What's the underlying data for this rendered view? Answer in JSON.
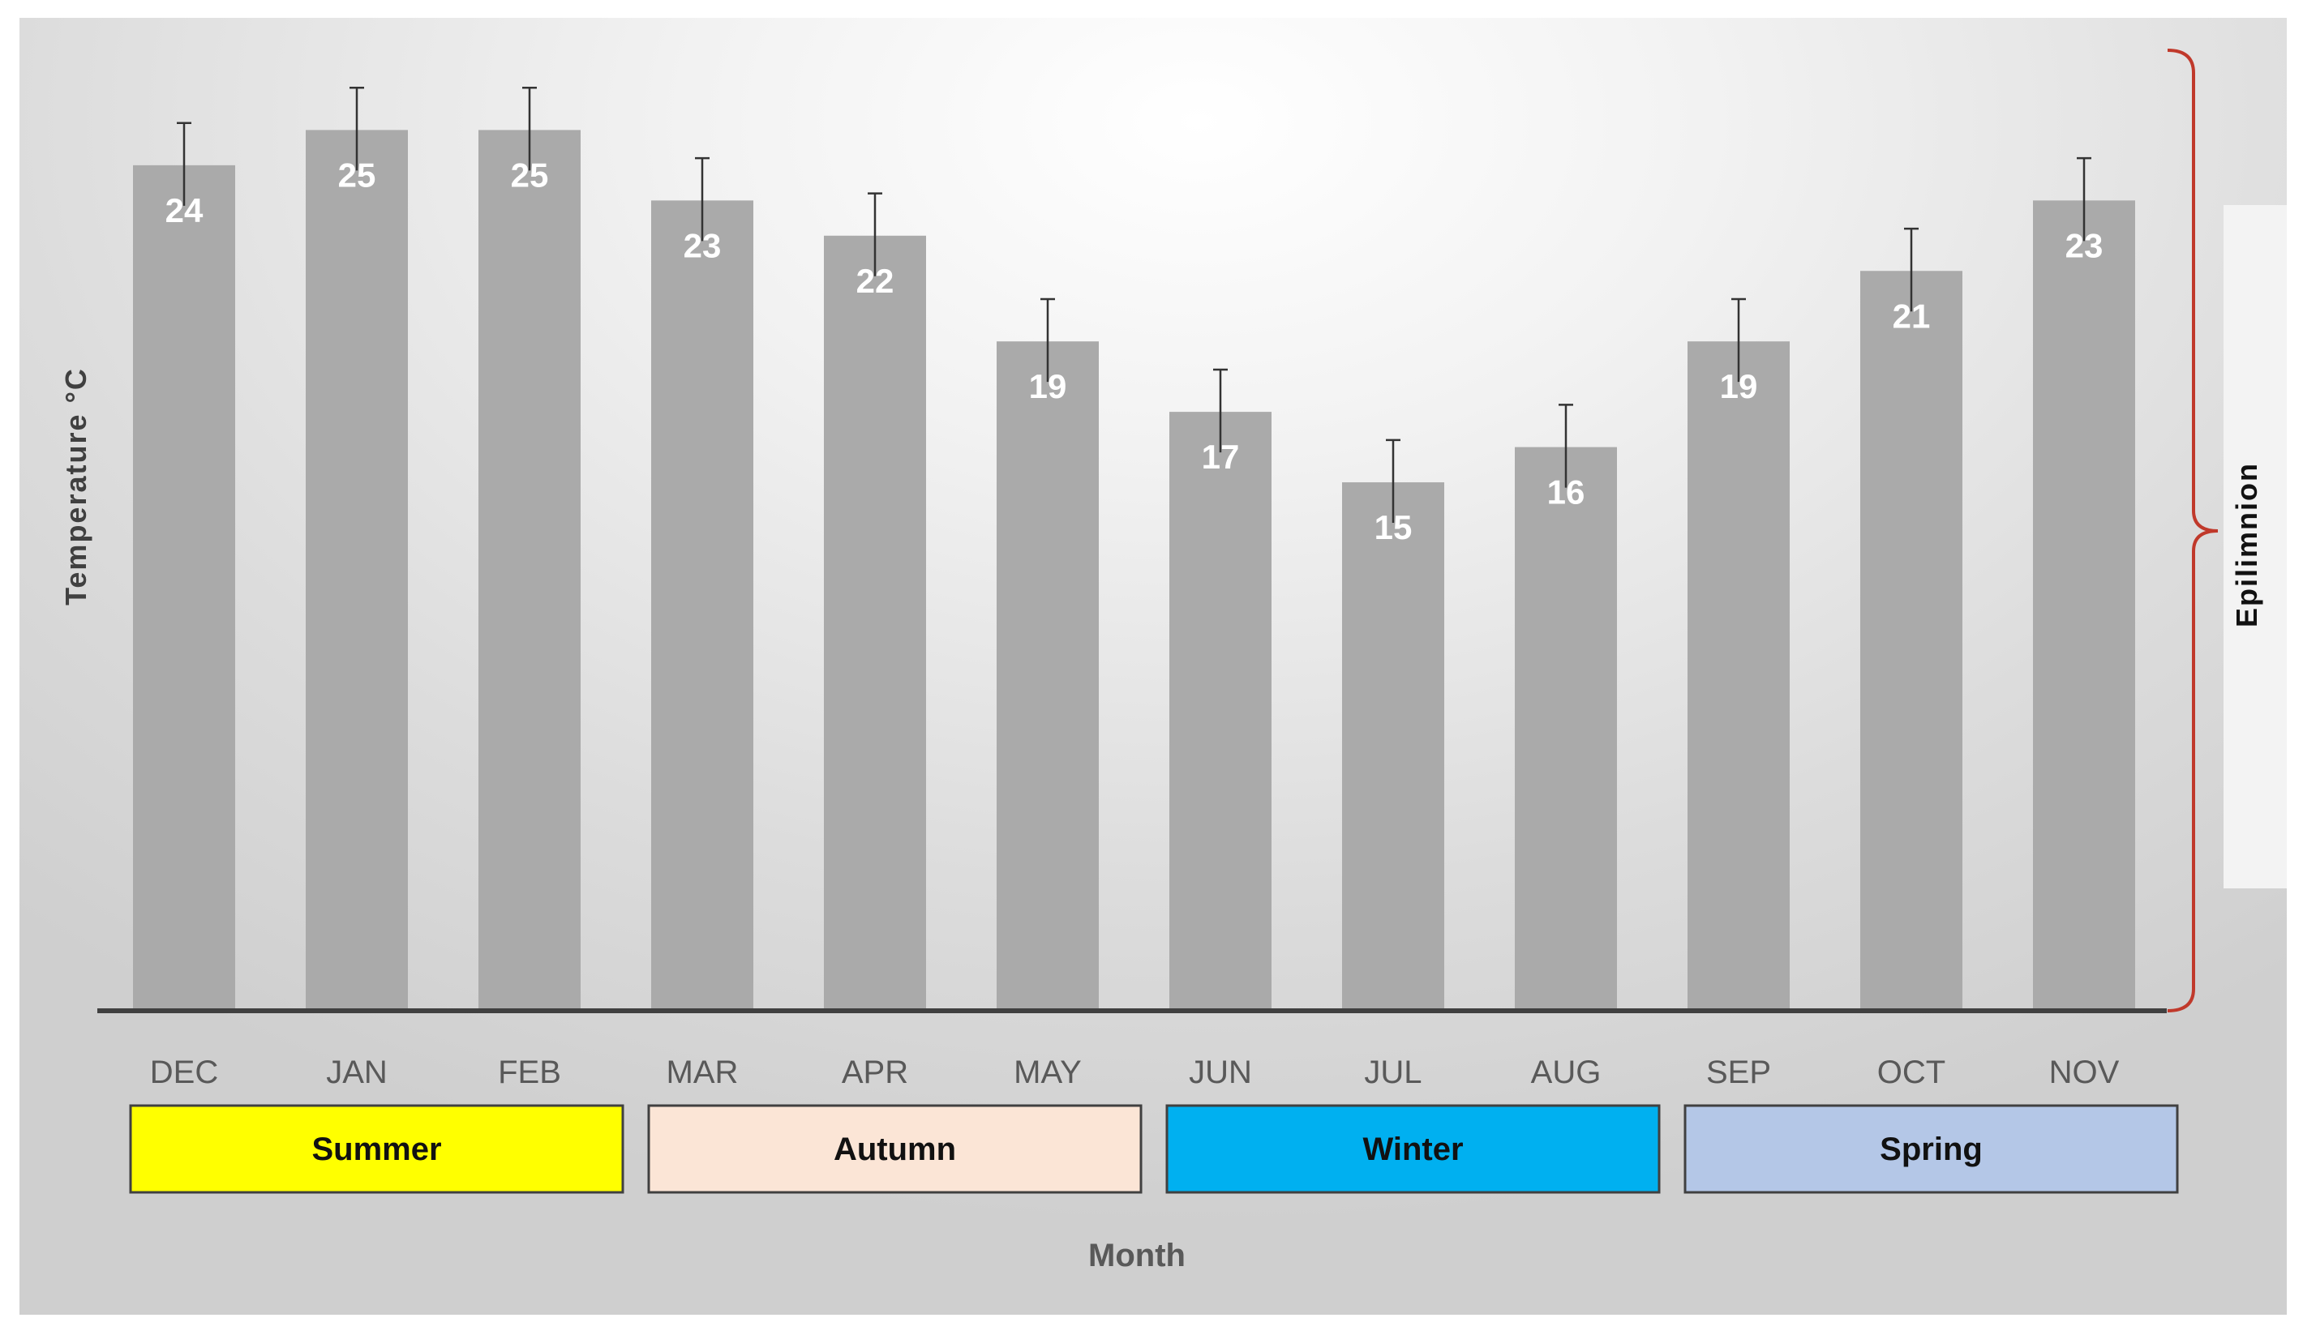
{
  "chart_data": {
    "type": "bar",
    "categories": [
      "DEC",
      "JAN",
      "FEB",
      "MAR",
      "APR",
      "MAY",
      "JUN",
      "JUL",
      "AUG",
      "SEP",
      "OCT",
      "NOV"
    ],
    "values": [
      24,
      25,
      25,
      23,
      22,
      19,
      17,
      15,
      16,
      19,
      21,
      23
    ],
    "error": [
      1.2,
      1.2,
      1.2,
      1.2,
      1.2,
      1.2,
      1.2,
      1.2,
      1.2,
      1.2,
      1.2,
      1.2
    ],
    "ylim": [
      0,
      28
    ],
    "xlabel": "Month",
    "ylabel": "Temperature °C",
    "bar_color": "#aaaaaa",
    "value_label_color": "#ffffff",
    "grid": false,
    "bracket": {
      "label": "Epilimnion",
      "color": "#c0392b"
    },
    "seasons": [
      {
        "label": "Summer",
        "color": "#ffff00",
        "months": [
          "DEC",
          "JAN",
          "FEB"
        ]
      },
      {
        "label": "Autumn",
        "color": "#fbe5d6",
        "months": [
          "MAR",
          "APR",
          "MAY"
        ]
      },
      {
        "label": "Winter",
        "color": "#00b0f0",
        "months": [
          "JUN",
          "JUL",
          "AUG"
        ]
      },
      {
        "label": "Spring",
        "color": "#b4c7e7",
        "months": [
          "SEP",
          "OCT",
          "NOV"
        ]
      }
    ]
  }
}
